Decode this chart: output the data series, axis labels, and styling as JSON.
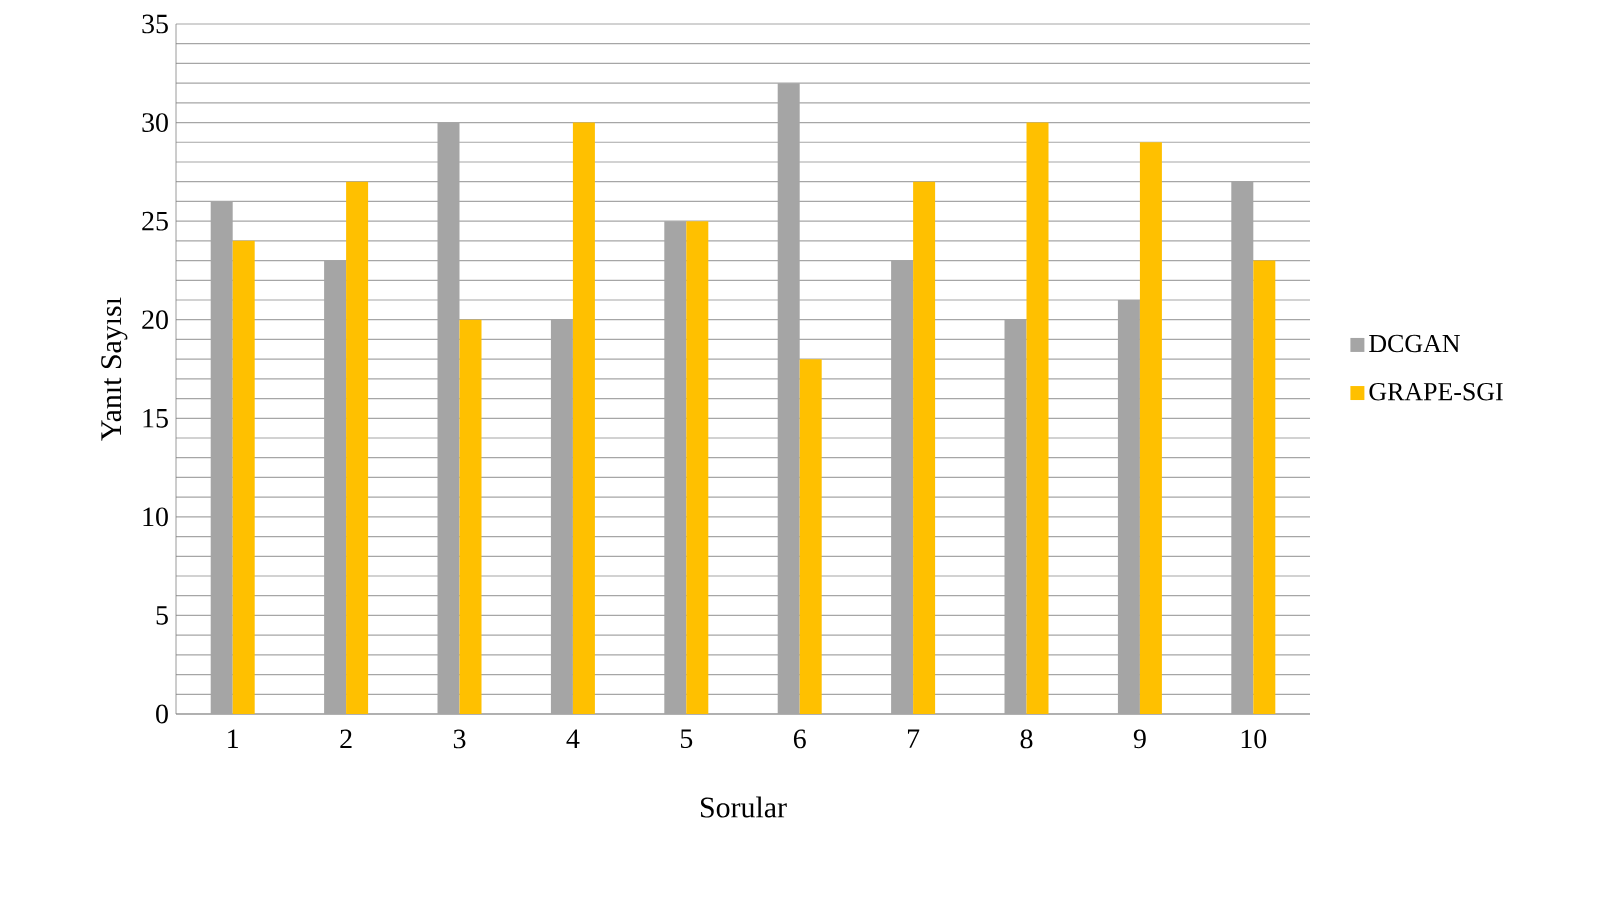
{
  "chart_data": {
    "type": "bar",
    "xlabel": "Sorular",
    "ylabel": "Yanıt  Sayısı",
    "categories": [
      "1",
      "2",
      "3",
      "4",
      "5",
      "6",
      "7",
      "8",
      "9",
      "10"
    ],
    "series": [
      {
        "name": "DCGAN",
        "color": "#a5a5a5",
        "values": [
          26,
          23,
          30,
          20,
          25,
          32,
          23,
          20,
          21,
          27
        ]
      },
      {
        "name": "GRAPE-SGI",
        "color": "#ffc000",
        "values": [
          24,
          27,
          20,
          30,
          25,
          18,
          27,
          30,
          29,
          23
        ]
      }
    ],
    "ylim": [
      0,
      35
    ],
    "yticks": [
      0,
      5,
      10,
      15,
      20,
      25,
      30,
      35
    ],
    "grid": "y",
    "legend": "right"
  }
}
